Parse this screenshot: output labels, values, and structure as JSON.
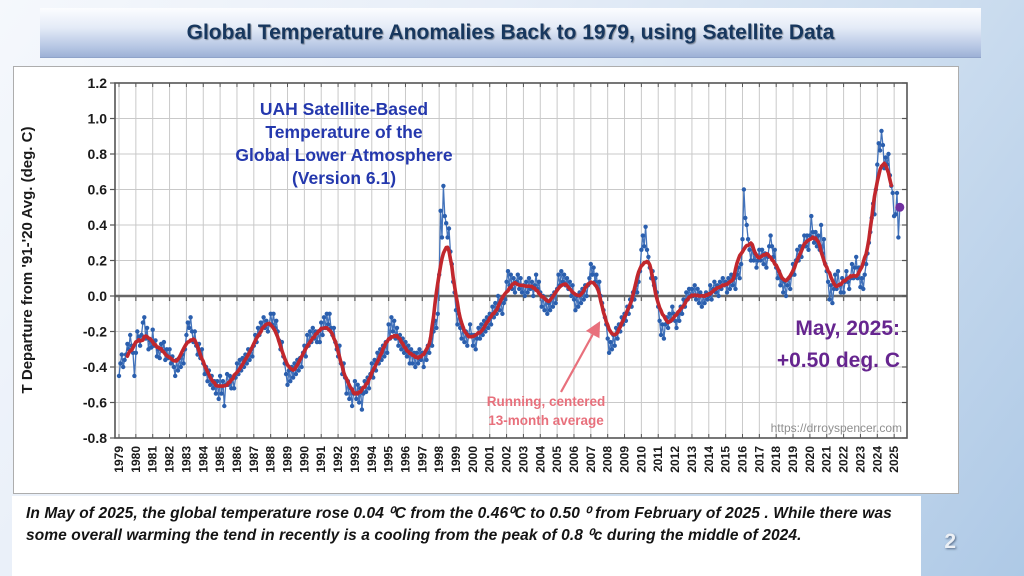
{
  "slide": {
    "title": "Global Temperature Anomalies Back to 1979, using Satellite Data",
    "page_number": "2",
    "footer_text": "In May of 2025, the global temperature rose 0.04 ⁰C from the 0.46⁰C to 0.50 ⁰ from February of 2025 .  While there was some overall warming the tend in recently is a cooling from the peak of 0.8 ⁰c during the middle of 2024."
  },
  "chart": {
    "title_lines": [
      "UAH Satellite-Based",
      "Temperature of the",
      "Global Lower Atmosphere",
      "(Version 6.1)"
    ],
    "y_axis_label": "T Departure from '91-'20 Avg. (deg. C)",
    "annotation": {
      "line1": "Running, centered",
      "line2": "13-month average"
    },
    "callout": {
      "line1": "May, 2025:",
      "line2": "+0.50 deg. C"
    },
    "watermark": "https://drroyspencer.com"
  },
  "chart_data": {
    "type": "line",
    "title": "UAH Satellite-Based Temperature of the Global Lower Atmosphere (Version 6.1)",
    "xlabel": "",
    "ylabel": "T Departure from '91-'20 Avg. (deg. C)",
    "ylim": [
      -0.8,
      1.2
    ],
    "ytick_step": 0.2,
    "grid": true,
    "x_start_year": 1979,
    "x_end_year": 2025,
    "series_info": [
      {
        "name": "Monthly global lower-atmosphere temperature anomaly",
        "color": "#2b5fae",
        "marker": "circle"
      },
      {
        "name": "Running, centered 13-month average",
        "color": "#c1272d",
        "derived": "centered_13_month_mean"
      }
    ],
    "last_point": {
      "label": "May, 2025",
      "value": 0.5,
      "color": "#7030a0"
    },
    "monthly_by_year": {
      "1979": [
        -0.45,
        -0.38,
        -0.33,
        -0.4,
        -0.36,
        -0.33,
        -0.27,
        -0.3,
        -0.22,
        -0.28,
        -0.32,
        -0.45
      ],
      "1980": [
        -0.32,
        -0.2,
        -0.23,
        -0.28,
        -0.22,
        -0.15,
        -0.12,
        -0.24,
        -0.18,
        -0.3,
        -0.25,
        -0.29
      ],
      "1981": [
        -0.19,
        -0.28,
        -0.25,
        -0.34,
        -0.3,
        -0.35,
        -0.27,
        -0.31,
        -0.26,
        -0.36,
        -0.3,
        -0.35
      ],
      "1982": [
        -0.3,
        -0.38,
        -0.34,
        -0.4,
        -0.45,
        -0.36,
        -0.42,
        -0.35,
        -0.4,
        -0.33,
        -0.38,
        -0.3
      ],
      "1983": [
        -0.22,
        -0.15,
        -0.18,
        -0.12,
        -0.2,
        -0.26,
        -0.2,
        -0.28,
        -0.33,
        -0.27,
        -0.35,
        -0.3
      ],
      "1984": [
        -0.38,
        -0.44,
        -0.4,
        -0.48,
        -0.42,
        -0.5,
        -0.45,
        -0.52,
        -0.48,
        -0.55,
        -0.48,
        -0.58
      ],
      "1985": [
        -0.45,
        -0.55,
        -0.48,
        -0.62,
        -0.5,
        -0.44,
        -0.5,
        -0.45,
        -0.52,
        -0.46,
        -0.52,
        -0.46
      ],
      "1986": [
        -0.38,
        -0.44,
        -0.36,
        -0.42,
        -0.35,
        -0.4,
        -0.33,
        -0.38,
        -0.3,
        -0.36,
        -0.3,
        -0.34
      ],
      "1987": [
        -0.28,
        -0.22,
        -0.26,
        -0.18,
        -0.22,
        -0.15,
        -0.18,
        -0.12,
        -0.18,
        -0.14,
        -0.2,
        -0.16
      ],
      "1988": [
        -0.1,
        -0.16,
        -0.1,
        -0.18,
        -0.14,
        -0.2,
        -0.25,
        -0.3,
        -0.26,
        -0.34,
        -0.38,
        -0.44
      ],
      "1989": [
        -0.5,
        -0.42,
        -0.48,
        -0.4,
        -0.46,
        -0.38,
        -0.44,
        -0.36,
        -0.42,
        -0.35,
        -0.4,
        -0.32
      ],
      "1990": [
        -0.28,
        -0.34,
        -0.22,
        -0.28,
        -0.2,
        -0.26,
        -0.18,
        -0.24,
        -0.2,
        -0.26,
        -0.2,
        -0.26
      ],
      "1991": [
        -0.15,
        -0.22,
        -0.12,
        -0.18,
        -0.1,
        -0.16,
        -0.1,
        -0.18,
        -0.22,
        -0.18,
        -0.26,
        -0.3
      ],
      "1992": [
        -0.34,
        -0.28,
        -0.38,
        -0.44,
        -0.38,
        -0.46,
        -0.55,
        -0.48,
        -0.58,
        -0.52,
        -0.62,
        -0.55
      ],
      "1993": [
        -0.48,
        -0.58,
        -0.5,
        -0.6,
        -0.52,
        -0.64,
        -0.55,
        -0.48,
        -0.54,
        -0.46,
        -0.52,
        -0.44
      ],
      "1994": [
        -0.38,
        -0.46,
        -0.36,
        -0.42,
        -0.32,
        -0.38,
        -0.3,
        -0.36,
        -0.28,
        -0.34,
        -0.26,
        -0.32
      ],
      "1995": [
        -0.16,
        -0.24,
        -0.12,
        -0.2,
        -0.14,
        -0.24,
        -0.18,
        -0.28,
        -0.22,
        -0.3,
        -0.24,
        -0.32
      ],
      "1996": [
        -0.26,
        -0.34,
        -0.28,
        -0.38,
        -0.3,
        -0.38,
        -0.32,
        -0.4,
        -0.32,
        -0.38,
        -0.3,
        -0.36
      ],
      "1997": [
        -0.32,
        -0.4,
        -0.32,
        -0.36,
        -0.28,
        -0.32,
        -0.24,
        -0.28,
        -0.2,
        -0.14,
        -0.18,
        -0.1
      ],
      "1998": [
        0.12,
        0.48,
        0.33,
        0.62,
        0.45,
        0.41,
        0.33,
        0.38,
        0.25,
        0.18,
        0.08,
        0.02
      ],
      "1999": [
        -0.08,
        -0.16,
        -0.1,
        -0.18,
        -0.24,
        -0.18,
        -0.26,
        -0.2,
        -0.28,
        -0.22,
        -0.16,
        -0.22
      ],
      "2000": [
        -0.28,
        -0.22,
        -0.3,
        -0.24,
        -0.18,
        -0.24,
        -0.16,
        -0.22,
        -0.14,
        -0.2,
        -0.12,
        -0.18
      ],
      "2001": [
        -0.1,
        -0.16,
        -0.06,
        -0.12,
        -0.04,
        -0.1,
        0.0,
        -0.08,
        -0.02,
        -0.1,
        -0.04,
        -0.02
      ],
      "2002": [
        0.08,
        0.14,
        0.06,
        0.12,
        0.04,
        0.1,
        0.02,
        0.08,
        0.12,
        0.04,
        0.1,
        0.02
      ],
      "2003": [
        0.06,
        0.0,
        0.08,
        0.02,
        0.1,
        0.04,
        0.08,
        0.0,
        0.06,
        0.12,
        0.04,
        0.08
      ],
      "2004": [
        0.02,
        -0.06,
        0.0,
        -0.08,
        -0.02,
        -0.1,
        -0.04,
        -0.08,
        0.0,
        -0.06,
        0.02,
        -0.04
      ],
      "2005": [
        0.04,
        0.12,
        0.06,
        0.14,
        0.08,
        0.12,
        0.06,
        0.1,
        0.04,
        0.08,
        0.0,
        0.06
      ],
      "2006": [
        -0.02,
        -0.08,
        0.0,
        -0.06,
        0.02,
        -0.04,
        0.04,
        -0.02,
        0.06,
        0.0,
        0.06,
        0.1
      ],
      "2007": [
        0.18,
        0.12,
        0.16,
        0.08,
        0.12,
        0.04,
        0.08,
        0.0,
        -0.04,
        -0.08,
        -0.12,
        -0.16
      ],
      "2008": [
        -0.24,
        -0.32,
        -0.26,
        -0.3,
        -0.22,
        -0.28,
        -0.18,
        -0.24,
        -0.16,
        -0.2,
        -0.12,
        -0.16
      ],
      "2009": [
        -0.1,
        -0.14,
        -0.06,
        -0.1,
        -0.02,
        -0.06,
        0.02,
        -0.02,
        0.06,
        0.02,
        0.08,
        0.14
      ],
      "2010": [
        0.26,
        0.34,
        0.28,
        0.39,
        0.26,
        0.22,
        0.16,
        0.1,
        0.14,
        0.06,
        0.1,
        0.02
      ],
      "2011": [
        -0.06,
        -0.14,
        -0.22,
        -0.16,
        -0.24,
        -0.16,
        -0.12,
        -0.18,
        -0.1,
        -0.14,
        -0.06,
        -0.1
      ],
      "2012": [
        -0.14,
        -0.18,
        -0.1,
        -0.14,
        -0.06,
        -0.1,
        -0.02,
        -0.06,
        0.02,
        -0.02,
        0.04,
        0.0
      ],
      "2013": [
        0.04,
        0.0,
        0.06,
        -0.02,
        0.04,
        -0.04,
        0.02,
        -0.06,
        0.0,
        -0.04,
        0.02,
        -0.02
      ],
      "2014": [
        0.0,
        0.06,
        -0.02,
        0.04,
        0.08,
        0.02,
        0.06,
        0.0,
        0.08,
        0.04,
        0.1,
        0.06
      ],
      "2015": [
        0.08,
        0.02,
        0.1,
        0.04,
        0.12,
        0.06,
        0.1,
        0.04,
        0.12,
        0.16,
        0.1,
        0.18
      ],
      "2016": [
        0.32,
        0.6,
        0.44,
        0.4,
        0.32,
        0.26,
        0.2,
        0.28,
        0.2,
        0.24,
        0.16,
        0.2
      ],
      "2017": [
        0.26,
        0.2,
        0.26,
        0.18,
        0.24,
        0.16,
        0.22,
        0.28,
        0.34,
        0.28,
        0.22,
        0.26
      ],
      "2018": [
        0.16,
        0.1,
        0.14,
        0.06,
        0.1,
        0.02,
        0.08,
        0.0,
        0.06,
        0.1,
        0.04,
        0.12
      ],
      "2019": [
        0.18,
        0.12,
        0.2,
        0.26,
        0.2,
        0.28,
        0.22,
        0.28,
        0.34,
        0.28,
        0.34,
        0.26
      ],
      "2020": [
        0.34,
        0.45,
        0.36,
        0.3,
        0.36,
        0.28,
        0.34,
        0.26,
        0.4,
        0.24,
        0.32,
        0.18
      ],
      "2021": [
        0.14,
        0.08,
        -0.02,
        0.06,
        -0.04,
        0.04,
        0.12,
        0.04,
        0.14,
        0.06,
        0.02,
        0.1
      ],
      "2022": [
        0.02,
        0.08,
        0.14,
        0.08,
        0.04,
        0.1,
        0.18,
        0.1,
        0.16,
        0.22,
        0.1,
        0.16
      ],
      "2023": [
        0.05,
        0.1,
        0.04,
        0.12,
        0.18,
        0.24,
        0.3,
        0.36,
        0.44,
        0.52,
        0.46,
        0.6
      ],
      "2024": [
        0.74,
        0.86,
        0.82,
        0.93,
        0.85,
        0.72,
        0.78,
        0.74,
        0.8,
        0.68,
        0.62,
        0.58
      ],
      "2025": [
        0.45,
        0.46,
        0.58,
        0.33,
        0.5
      ]
    },
    "legend_position": "none",
    "colors": {
      "monthly_line": "#4373bb",
      "monthly_marker": "#2b5fae",
      "running_mean": "#c1272d",
      "last_point": "#7030a0",
      "grid": "#c9c9c9",
      "zero_line": "#666666",
      "frame": "#555555",
      "callout_text": "#66258f",
      "annotation_text": "#e8707c",
      "chart_title_text": "#2438ad"
    }
  }
}
